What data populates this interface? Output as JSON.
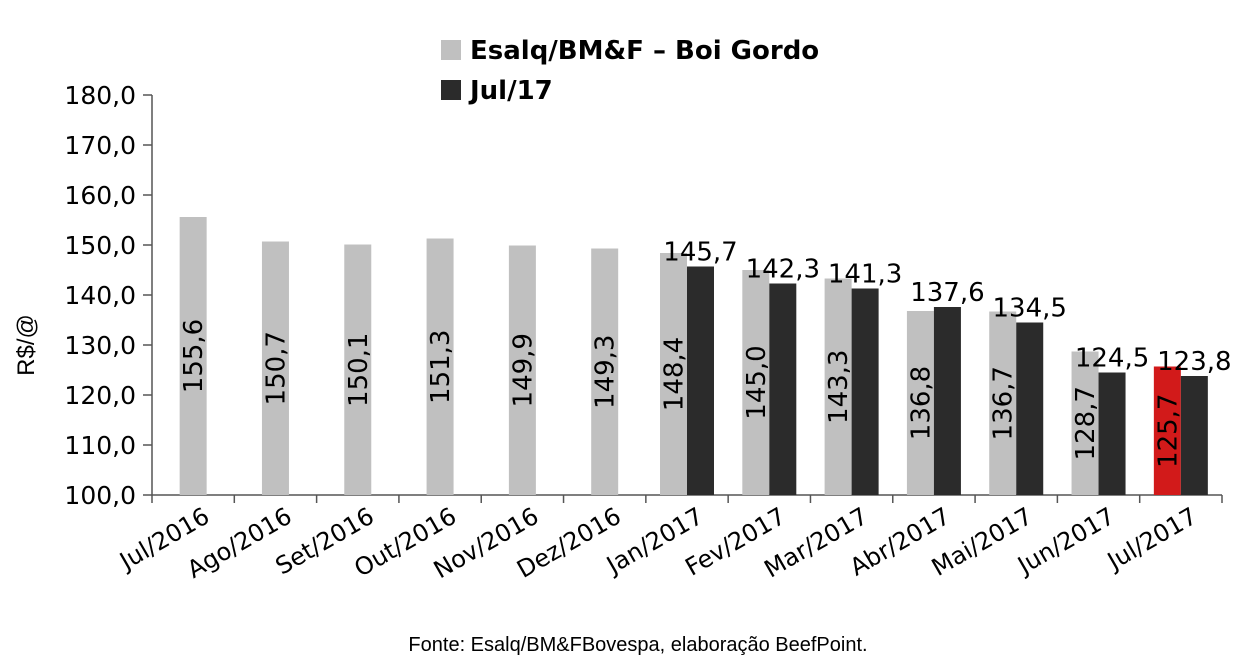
{
  "chart_data": {
    "type": "bar",
    "categories": [
      "Jul/2016",
      "Ago/2016",
      "Set/2016",
      "Out/2016",
      "Nov/2016",
      "Dez/2016",
      "Jan/2017",
      "Fev/2017",
      "Mar/2017",
      "Abr/2017",
      "Mai/2017",
      "Jun/2017",
      "Jul/2017"
    ],
    "series": [
      {
        "name": "Esalq/BM&F – Boi Gordo",
        "color": "#c0c0c0",
        "values": [
          155.6,
          150.7,
          150.1,
          151.3,
          149.9,
          149.3,
          148.4,
          145.0,
          143.3,
          136.8,
          136.7,
          128.7,
          125.7
        ],
        "labels": [
          "155,6",
          "150,7",
          "150,1",
          "151,3",
          "149,9",
          "149,3",
          "148,4",
          "145,0",
          "143,3",
          "136,8",
          "136,7",
          "128,7",
          "125,7"
        ],
        "highlight": {
          "index": 12,
          "color": "#d21a1a"
        }
      },
      {
        "name": "Jul/17",
        "color": "#2b2b2b",
        "values": [
          null,
          null,
          null,
          null,
          null,
          null,
          145.7,
          142.3,
          141.3,
          137.6,
          134.5,
          124.5,
          123.8
        ],
        "labels": [
          "",
          "",
          "",
          "",
          "",
          "",
          "145,7",
          "142,3",
          "141,3",
          "137,6",
          "134,5",
          "124,5",
          "123,8"
        ]
      }
    ],
    "ylabel": "R$/@",
    "ylim": [
      100,
      180
    ],
    "yticks": [
      "100,0",
      "110,0",
      "120,0",
      "130,0",
      "140,0",
      "150,0",
      "160,0",
      "170,0",
      "180,0"
    ],
    "grid": false,
    "legend_position": "top"
  },
  "source": "Fonte: Esalq/BM&FBovespa, elaboração BeefPoint."
}
